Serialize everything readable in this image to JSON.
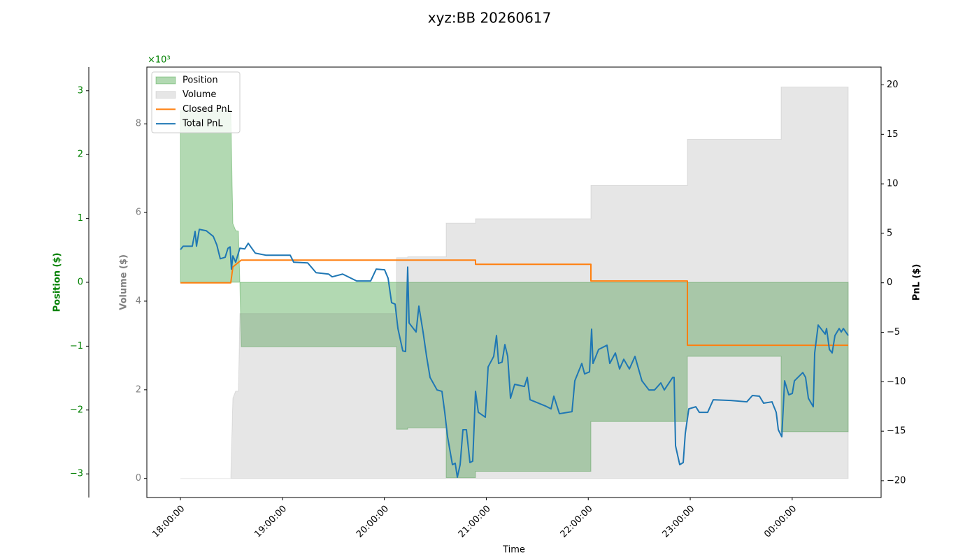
{
  "chart_data": {
    "type": "line",
    "title": "xyz:BB 20260617",
    "xlabel": "Time",
    "xlim": [
      "17:40:15",
      "00:52:19"
    ],
    "xticks": [
      "18:00:00",
      "19:00:00",
      "20:00:00",
      "21:00:00",
      "22:00:00",
      "23:00:00",
      "00:00:00"
    ],
    "ylabel": "Position ($)",
    "ycolor": "green",
    "offset_label": "×10³",
    "ylim": [
      -3.37,
      3.37
    ],
    "yticks": [
      {
        "value": -3,
        "label": "−3"
      },
      {
        "value": -2,
        "label": "−2"
      },
      {
        "value": -1,
        "label": "−1"
      },
      0,
      1,
      2,
      3
    ],
    "y3label": "Volume ($)",
    "y3color": "gray",
    "y3lim": [
      -0.43,
      9.28
    ],
    "y3ticks": [
      0,
      2,
      4,
      6,
      8
    ],
    "y2label": "PnL ($)",
    "y2lim": [
      -21.7,
      21.8
    ],
    "y2ticks": [
      {
        "value": -20,
        "label": "−20"
      },
      {
        "value": -15,
        "label": "−15"
      },
      {
        "value": -10,
        "label": "−10"
      },
      {
        "value": -5,
        "label": "−5"
      },
      0,
      5,
      10,
      15,
      20
    ],
    "legend_loc": "upper left",
    "series": [
      {
        "name": "Position",
        "kind": "area",
        "axis": "y",
        "color": "green",
        "alpha": 0.3,
        "x": [
          "18:00:00",
          "18:29:38",
          "18:30:52",
          "18:32:31",
          "18:34:09",
          "18:34:59",
          "18:35:48",
          "20:07:09",
          "20:07:09",
          "20:13:44",
          "20:13:44",
          "20:36:22",
          "20:36:22",
          "20:53:39",
          "20:53:39",
          "22:01:33",
          "22:01:33",
          "22:58:20",
          "22:58:20",
          "23:53:28",
          "23:53:28",
          "00:32:59"
        ],
        "values": [
          2.69,
          2.69,
          0.92,
          0.81,
          0.8,
          0,
          -1.01,
          -1.01,
          -2.3,
          -2.3,
          -2.28,
          -2.28,
          -3.06,
          -3.06,
          -2.96,
          -2.96,
          -2.18,
          -2.18,
          -1.16,
          -1.16,
          -2.34,
          -2.34
        ]
      },
      {
        "name": "Volume",
        "kind": "area",
        "axis": "y3",
        "color": "gray",
        "alpha": 0.2,
        "x": [
          "18:00:00",
          "18:29:38",
          "18:30:52",
          "18:32:31",
          "18:34:09",
          "18:34:59",
          "20:07:09",
          "20:07:09",
          "20:13:44",
          "20:13:44",
          "20:36:22",
          "20:36:22",
          "20:53:39",
          "20:53:39",
          "22:01:33",
          "22:01:33",
          "22:58:20",
          "22:58:20",
          "23:53:28",
          "23:53:28",
          "00:32:59"
        ],
        "values": [
          0,
          0,
          1.81,
          1.97,
          1.97,
          3.72,
          3.72,
          4.98,
          4.98,
          5.0,
          5.0,
          5.76,
          5.76,
          5.86,
          5.86,
          6.61,
          6.61,
          7.65,
          7.65,
          8.83,
          8.83
        ]
      },
      {
        "name": "Closed PnL",
        "kind": "line",
        "axis": "y2",
        "color": "#ff7f0e",
        "x": [
          "18:00:00",
          "18:29:38",
          "18:30:52",
          "18:35:48",
          "20:53:39",
          "20:53:39",
          "22:01:33",
          "22:01:33",
          "22:58:20",
          "22:58:20",
          "00:32:59"
        ],
        "values": [
          0,
          0,
          1.6,
          2.29,
          2.29,
          1.87,
          1.87,
          0.18,
          0.18,
          -6.31,
          -6.31
        ]
      },
      {
        "name": "Total PnL",
        "kind": "line",
        "axis": "y2",
        "color": "#1f77b4",
        "x": [
          "18:00:00",
          "18:01:39",
          "18:07:00",
          "18:08:38",
          "18:09:28",
          "18:11:07",
          "18:15:14",
          "18:19:20",
          "18:21:24",
          "18:23:27",
          "18:26:20",
          "18:27:59",
          "18:29:13",
          "18:30:02",
          "18:30:52",
          "18:32:31",
          "18:33:45",
          "18:34:59",
          "18:37:51",
          "18:39:55",
          "18:44:02",
          "18:50:12",
          "19:04:36",
          "19:06:40",
          "19:14:54",
          "19:19:50",
          "19:27:14",
          "19:29:18",
          "19:35:28",
          "19:43:42",
          "19:51:56",
          "19:55:13",
          "20:00:09",
          "20:02:13",
          "20:04:16",
          "20:06:20",
          "20:07:59",
          "20:10:51",
          "20:12:30",
          "20:13:44",
          "20:14:34",
          "20:18:41",
          "20:20:19",
          "20:22:47",
          "20:24:51",
          "20:26:54",
          "20:31:01",
          "20:33:54",
          "20:35:33",
          "20:37:12",
          "20:40:04",
          "20:41:43",
          "20:42:57",
          "20:44:36",
          "20:46:15",
          "20:48:18",
          "20:50:22",
          "20:52:00",
          "20:53:39",
          "20:55:18",
          "20:59:25",
          "21:01:04",
          "21:04:21",
          "21:06:00",
          "21:07:14",
          "21:09:17",
          "21:10:56",
          "21:12:35",
          "21:14:14",
          "21:16:42",
          "21:22:27",
          "21:24:06",
          "21:25:45",
          "21:34:48",
          "21:38:06",
          "21:39:44",
          "21:43:02",
          "21:50:26",
          "21:52:05",
          "21:56:12",
          "21:57:51",
          "22:00:44",
          "22:01:58",
          "22:02:47",
          "22:06:05",
          "22:11:01",
          "22:12:40",
          "22:15:57",
          "22:18:25",
          "22:20:53",
          "22:24:11",
          "22:27:29",
          "22:31:35",
          "22:35:42",
          "22:39:00",
          "22:42:42",
          "22:44:45",
          "22:49:42",
          "22:50:31",
          "22:51:21",
          "22:53:49",
          "22:55:52",
          "22:57:06",
          "22:59:10",
          "23:03:17",
          "23:05:20",
          "23:10:16",
          "23:13:34",
          "23:23:51",
          "23:33:19",
          "23:36:36",
          "23:40:43",
          "23:43:11",
          "23:48:07",
          "23:50:36",
          "23:51:50",
          "23:53:53",
          "23:55:32",
          "23:58:00",
          "00:00:04",
          "00:01:18",
          "00:06:14",
          "00:07:53",
          "00:09:32",
          "00:12:24",
          "00:13:14",
          "00:15:17",
          "00:19:24",
          "00:20:14",
          "00:21:53",
          "00:23:31",
          "00:25:10",
          "00:27:38",
          "00:28:52",
          "00:30:06",
          "00:32:59"
        ],
        "values": [
          3.35,
          3.7,
          3.7,
          5.19,
          3.7,
          5.4,
          5.26,
          4.69,
          3.84,
          2.43,
          2.58,
          3.49,
          3.63,
          1.38,
          2.72,
          2.08,
          2.79,
          3.49,
          3.42,
          3.99,
          3.0,
          2.79,
          2.79,
          2.08,
          2.01,
          1.02,
          0.88,
          0.6,
          0.88,
          0.18,
          0.18,
          1.38,
          1.31,
          0.46,
          -2.01,
          -2.15,
          -4.62,
          -6.88,
          -6.95,
          1.59,
          -4.06,
          -4.97,
          -2.36,
          -4.97,
          -7.44,
          -9.56,
          -10.83,
          -10.97,
          -13.09,
          -15.56,
          -18.38,
          -18.24,
          -19.65,
          -18.38,
          -14.85,
          -14.85,
          -18.17,
          -18.03,
          -10.97,
          -13.09,
          -13.58,
          -8.5,
          -7.44,
          -5.33,
          -8.15,
          -8.01,
          -6.24,
          -7.44,
          -11.67,
          -10.26,
          -10.48,
          -9.56,
          -11.82,
          -12.45,
          -12.74,
          -11.46,
          -13.23,
          -13.02,
          -9.91,
          -8.15,
          -9.21,
          -9.0,
          -4.69,
          -8.15,
          -6.74,
          -6.31,
          -8.15,
          -7.09,
          -8.71,
          -7.73,
          -8.71,
          -7.44,
          -9.91,
          -10.83,
          -10.83,
          -10.12,
          -10.83,
          -9.56,
          -9.56,
          -16.47,
          -18.38,
          -18.17,
          -15.21,
          -12.74,
          -12.53,
          -13.09,
          -13.09,
          -11.82,
          -11.89,
          -12.03,
          -11.39,
          -11.46,
          -12.17,
          -12.03,
          -13.09,
          -14.85,
          -15.56,
          -9.91,
          -11.32,
          -11.18,
          -9.91,
          -9.07,
          -9.56,
          -11.67,
          -12.53,
          -7.09,
          -4.27,
          -5.19,
          -4.62,
          -6.74,
          -7.09,
          -5.33,
          -4.62,
          -4.97,
          -4.62,
          -5.33
        ]
      }
    ]
  }
}
